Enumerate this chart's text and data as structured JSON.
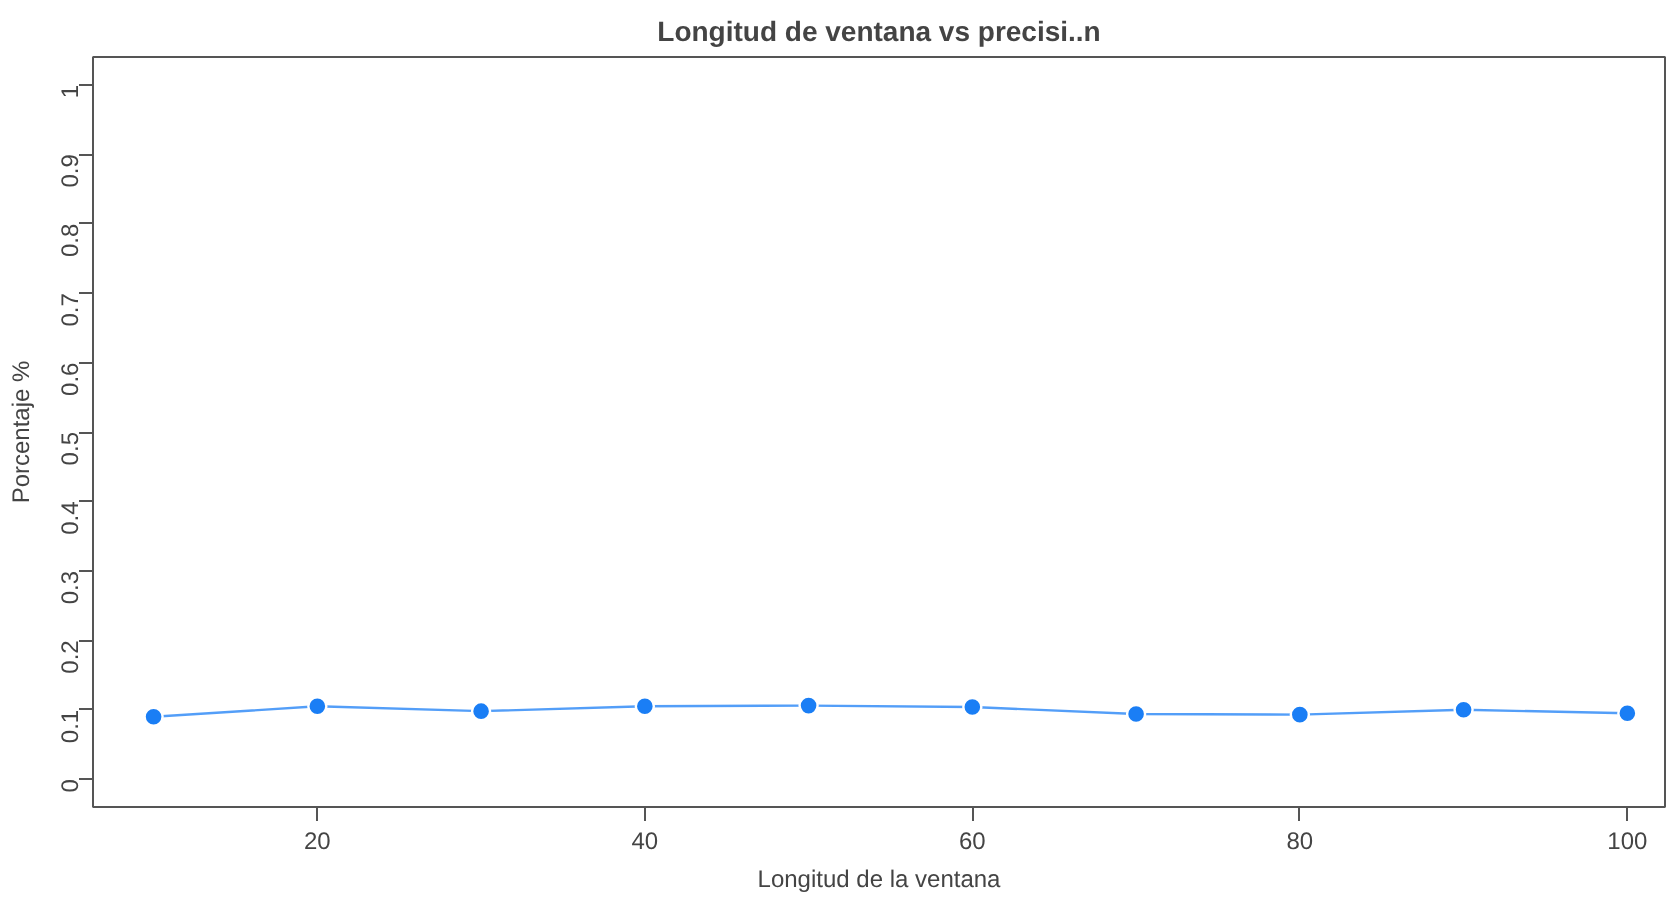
{
  "chart_data": {
    "type": "line",
    "title": "Longitud de ventana vs precisi..n",
    "xlabel": "Longitud de la ventana",
    "ylabel": "Porcentaje %",
    "x": [
      10,
      20,
      30,
      40,
      50,
      60,
      70,
      80,
      90,
      100
    ],
    "series": [
      {
        "color": "#1a7ef5",
        "values": [
          0.09,
          0.105,
          0.098,
          0.105,
          0.106,
          0.104,
          0.094,
          0.093,
          0.1,
          0.095
        ]
      }
    ],
    "xlim": [
      6.3,
      102.3
    ],
    "ylim": [
      -0.04,
      1.04
    ],
    "xticks": [
      20,
      40,
      60,
      80,
      100
    ],
    "yticks": [
      0,
      0.1,
      0.2,
      0.3,
      0.4,
      0.5,
      0.6,
      0.7,
      0.8,
      0.9,
      1
    ],
    "marker": "circle",
    "line_style": "solid",
    "grid": false
  }
}
